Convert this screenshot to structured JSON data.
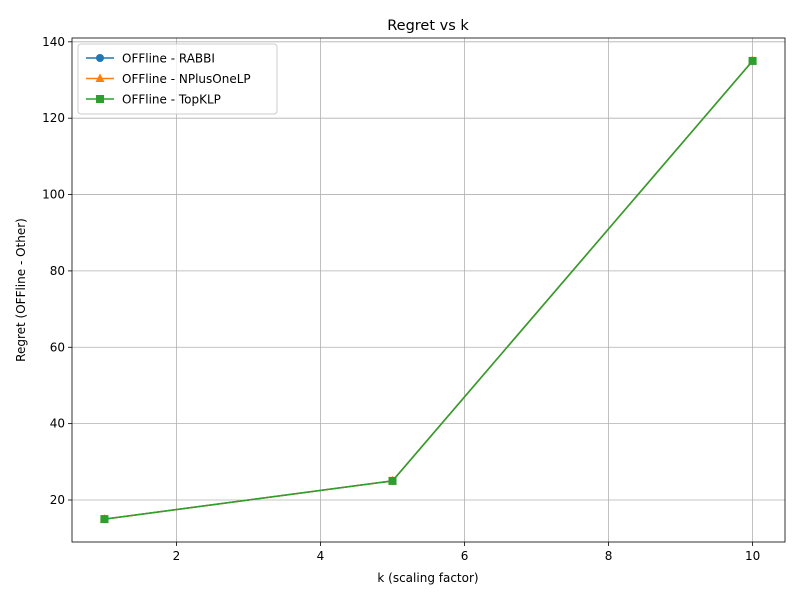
{
  "chart_data": {
    "type": "line",
    "title": "Regret vs k",
    "xlabel": "k (scaling factor)",
    "ylabel": "Regret (OFFline - Other)",
    "x": [
      1,
      5,
      10
    ],
    "xlim": [
      0.55,
      10.45
    ],
    "ylim": [
      9,
      141
    ],
    "xticks": [
      2,
      4,
      6,
      8,
      10
    ],
    "yticks": [
      20,
      40,
      60,
      80,
      100,
      120,
      140
    ],
    "grid": true,
    "legend_position": "upper-left",
    "series": [
      {
        "name": "OFFline - RABBI",
        "values": [
          15,
          25,
          135
        ],
        "color": "#1f77b4",
        "marker": "circle"
      },
      {
        "name": "OFFline - NPlusOneLP",
        "values": [
          15,
          25,
          135
        ],
        "color": "#ff7f0e",
        "marker": "triangle"
      },
      {
        "name": "OFFline - TopKLP",
        "values": [
          15,
          25,
          135
        ],
        "color": "#2ca02c",
        "marker": "square"
      }
    ]
  }
}
